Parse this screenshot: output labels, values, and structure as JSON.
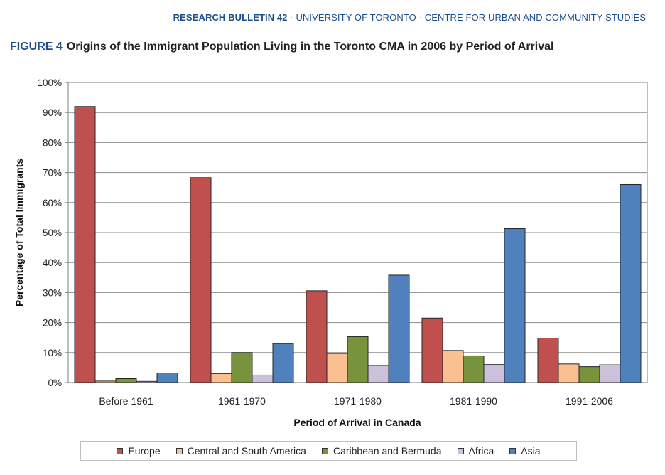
{
  "header": {
    "bulletin": "RESEARCH BULLETIN 42",
    "rest": " · UNIVERSITY OF TORONTO · CENTRE FOR URBAN AND COMMUNITY STUDIES"
  },
  "figure": {
    "label": "FIGURE 4",
    "title": "Origins of the Immigrant Population Living in the Toronto CMA in 2006 by Period of Arrival"
  },
  "chart_data": {
    "type": "bar",
    "xlabel": "Period of Arrival in Canada",
    "ylabel": "Percentage of Total Immigrants",
    "ylim": [
      0,
      100
    ],
    "yticks": [
      "0%",
      "10%",
      "20%",
      "30%",
      "40%",
      "50%",
      "60%",
      "70%",
      "80%",
      "90%",
      "100%"
    ],
    "grid": true,
    "legend_position": "bottom",
    "categories": [
      "Before 1961",
      "1961-1970",
      "1971-1980",
      "1981-1990",
      "1991-2006"
    ],
    "series": [
      {
        "name": "Europe",
        "color": "#c0504d",
        "values": [
          92,
          68.3,
          30.6,
          21.5,
          14.8
        ]
      },
      {
        "name": "Central and South America",
        "color": "#fac090",
        "values": [
          0.5,
          3,
          9.7,
          10.7,
          6.2
        ]
      },
      {
        "name": "Caribbean and Bermuda",
        "color": "#77933c",
        "values": [
          1.3,
          10,
          15.3,
          8.9,
          5.3
        ]
      },
      {
        "name": "Africa",
        "color": "#ccc1da",
        "values": [
          0.4,
          2.5,
          5.7,
          6,
          5.9
        ]
      },
      {
        "name": "Asia",
        "color": "#4f81bd",
        "values": [
          3.2,
          13,
          35.8,
          51.3,
          66
        ]
      }
    ]
  }
}
